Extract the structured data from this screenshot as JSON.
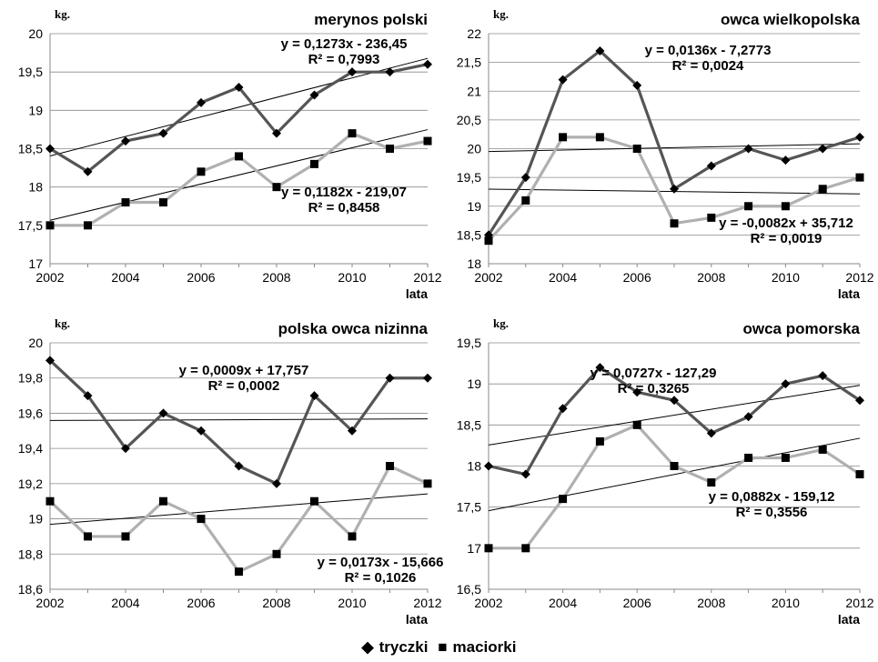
{
  "legend": {
    "series_a_marker": "◆",
    "series_a_label": "tryczki",
    "series_b_marker": "■",
    "series_b_label": "maciorki"
  },
  "chart_data": [
    {
      "type": "line",
      "title": "merynos polski",
      "ylabel": "kg.",
      "xlabel": "lata",
      "x": [
        2002,
        2003,
        2004,
        2005,
        2006,
        2007,
        2008,
        2009,
        2010,
        2011,
        2012
      ],
      "xticks": [
        2002,
        2004,
        2006,
        2008,
        2010,
        2012
      ],
      "ylim": [
        17,
        20
      ],
      "yticks": [
        17,
        17.5,
        18,
        18.5,
        19,
        19.5,
        20
      ],
      "series": [
        {
          "name": "tryczki",
          "marker": "diamond",
          "color": "#555555",
          "values": [
            18.5,
            18.2,
            18.6,
            18.7,
            19.1,
            19.3,
            18.7,
            19.2,
            19.5,
            19.5,
            19.6
          ],
          "trend": {
            "slope": 0.1273,
            "intercept": -236.45,
            "equation": "y = 0,1273x - 236,45",
            "r2": "R² = 0,7993"
          }
        },
        {
          "name": "maciorki",
          "marker": "square",
          "color": "#b0b0b0",
          "values": [
            17.5,
            17.5,
            17.8,
            17.8,
            18.2,
            18.4,
            18.0,
            18.3,
            18.7,
            18.5,
            18.6
          ],
          "trend": {
            "slope": 0.1182,
            "intercept": -219.07,
            "equation": "y = 0,1182x - 219,07",
            "r2": "R² = 0,8458"
          }
        }
      ]
    },
    {
      "type": "line",
      "title": "owca wielkopolska",
      "ylabel": "kg.",
      "xlabel": "lata",
      "x": [
        2002,
        2003,
        2004,
        2005,
        2006,
        2007,
        2008,
        2009,
        2010,
        2011,
        2012
      ],
      "xticks": [
        2002,
        2004,
        2006,
        2008,
        2010,
        2012
      ],
      "ylim": [
        18,
        22
      ],
      "yticks": [
        18,
        18.5,
        19,
        19.5,
        20,
        20.5,
        21,
        21.5,
        22
      ],
      "series": [
        {
          "name": "tryczki",
          "marker": "diamond",
          "color": "#555555",
          "values": [
            18.5,
            19.5,
            21.2,
            21.7,
            21.1,
            19.3,
            19.7,
            20.0,
            19.8,
            20.0,
            20.2
          ],
          "trend": {
            "slope": 0.0136,
            "intercept": -7.2773,
            "equation": "y = 0,0136x - 7,2773",
            "r2": "R² = 0,0024"
          }
        },
        {
          "name": "maciorki",
          "marker": "square",
          "color": "#b0b0b0",
          "values": [
            18.4,
            19.1,
            20.2,
            20.2,
            20.0,
            18.7,
            18.8,
            19.0,
            19.0,
            19.3,
            19.5
          ],
          "trend": {
            "slope": -0.0082,
            "intercept": 35.712,
            "equation": "y = -0,0082x + 35,712",
            "r2": "R² = 0,0019"
          }
        }
      ]
    },
    {
      "type": "line",
      "title": "polska owca nizinna",
      "ylabel": "kg.",
      "xlabel": "lata",
      "x": [
        2002,
        2003,
        2004,
        2005,
        2006,
        2007,
        2008,
        2009,
        2010,
        2011,
        2012
      ],
      "xticks": [
        2002,
        2004,
        2006,
        2008,
        2010,
        2012
      ],
      "ylim": [
        18.6,
        20
      ],
      "yticks": [
        18.6,
        18.8,
        19,
        19.2,
        19.4,
        19.6,
        19.8,
        20
      ],
      "series": [
        {
          "name": "tryczki",
          "marker": "diamond",
          "color": "#555555",
          "values": [
            19.9,
            19.7,
            19.4,
            19.6,
            19.5,
            19.3,
            19.2,
            19.7,
            19.5,
            19.8,
            19.8
          ],
          "trend": {
            "slope": 0.0009,
            "intercept": 17.757,
            "equation": "y = 0,0009x + 17,757",
            "r2": "R² = 0,0002"
          }
        },
        {
          "name": "maciorki",
          "marker": "square",
          "color": "#b0b0b0",
          "values": [
            19.1,
            18.9,
            18.9,
            19.1,
            19.0,
            18.7,
            18.8,
            19.1,
            18.9,
            19.3,
            19.2
          ],
          "trend": {
            "slope": 0.0173,
            "intercept": -15.666,
            "equation": "y = 0,0173x - 15,666",
            "r2": "R² = 0,1026"
          }
        }
      ]
    },
    {
      "type": "line",
      "title": "owca pomorska",
      "ylabel": "kg.",
      "xlabel": "lata",
      "x": [
        2002,
        2003,
        2004,
        2005,
        2006,
        2007,
        2008,
        2009,
        2010,
        2011,
        2012
      ],
      "xticks": [
        2002,
        2004,
        2006,
        2008,
        2010,
        2012
      ],
      "ylim": [
        16.5,
        19.5
      ],
      "yticks": [
        16.5,
        17,
        17.5,
        18,
        18.5,
        19,
        19.5
      ],
      "series": [
        {
          "name": "tryczki",
          "marker": "diamond",
          "color": "#555555",
          "values": [
            18.0,
            17.9,
            18.7,
            19.2,
            18.9,
            18.8,
            18.4,
            18.6,
            19.0,
            19.1,
            18.8
          ],
          "trend": {
            "slope": 0.0727,
            "intercept": -127.29,
            "equation": "y = 0,0727x - 127,29",
            "r2": "R² = 0,3265"
          }
        },
        {
          "name": "maciorki",
          "marker": "square",
          "color": "#b0b0b0",
          "values": [
            17.0,
            17.0,
            17.6,
            18.3,
            18.5,
            18.0,
            17.8,
            18.1,
            18.1,
            18.2,
            17.9
          ],
          "trend": {
            "slope": 0.0882,
            "intercept": -159.12,
            "equation": "y = 0,0882x - 159,12",
            "r2": "R² = 0,3556"
          }
        }
      ]
    }
  ]
}
